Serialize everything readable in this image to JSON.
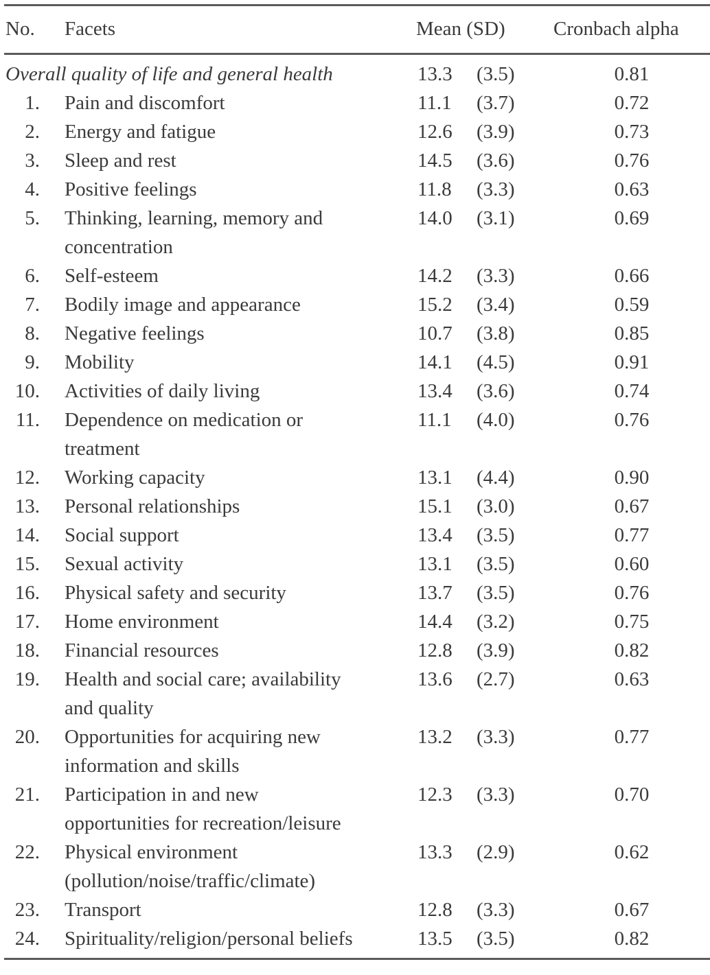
{
  "table": {
    "headers": {
      "no": "No.",
      "facets": "Facets",
      "mean_sd": "Mean (SD)",
      "alpha": "Cronbach alpha"
    },
    "overall": {
      "label": "Overall quality of life and general health",
      "mean": "13.3",
      "sd": "(3.5)",
      "alpha": "0.81"
    },
    "rows": [
      {
        "no": "1.",
        "facet": "Pain and discomfort",
        "facet2": "",
        "mean": "11.1",
        "sd": "(3.7)",
        "alpha": "0.72"
      },
      {
        "no": "2.",
        "facet": "Energy and fatigue",
        "facet2": "",
        "mean": "12.6",
        "sd": "(3.9)",
        "alpha": "0.73"
      },
      {
        "no": "3.",
        "facet": "Sleep and rest",
        "facet2": "",
        "mean": "14.5",
        "sd": "(3.6)",
        "alpha": "0.76"
      },
      {
        "no": "4.",
        "facet": "Positive feelings",
        "facet2": "",
        "mean": "11.8",
        "sd": "(3.3)",
        "alpha": "0.63"
      },
      {
        "no": "5.",
        "facet": "Thinking, learning, memory and",
        "facet2": "concentration",
        "mean": "14.0",
        "sd": "(3.1)",
        "alpha": "0.69"
      },
      {
        "no": "6.",
        "facet": "Self-esteem",
        "facet2": "",
        "mean": "14.2",
        "sd": "(3.3)",
        "alpha": "0.66"
      },
      {
        "no": "7.",
        "facet": "Bodily image and appearance",
        "facet2": "",
        "mean": "15.2",
        "sd": "(3.4)",
        "alpha": "0.59"
      },
      {
        "no": "8.",
        "facet": "Negative feelings",
        "facet2": "",
        "mean": "10.7",
        "sd": "(3.8)",
        "alpha": "0.85"
      },
      {
        "no": "9.",
        "facet": "Mobility",
        "facet2": "",
        "mean": "14.1",
        "sd": "(4.5)",
        "alpha": "0.91"
      },
      {
        "no": "10.",
        "facet": "Activities of daily living",
        "facet2": "",
        "mean": "13.4",
        "sd": "(3.6)",
        "alpha": "0.74"
      },
      {
        "no": "11.",
        "facet": "Dependence on medication  or",
        "facet2": "treatment",
        "mean": "11.1",
        "sd": "(4.0)",
        "alpha": "0.76"
      },
      {
        "no": "12.",
        "facet": "Working capacity",
        "facet2": "",
        "mean": "13.1",
        "sd": "(4.4)",
        "alpha": "0.90"
      },
      {
        "no": "13.",
        "facet": "Personal relationships",
        "facet2": "",
        "mean": "15.1",
        "sd": "(3.0)",
        "alpha": "0.67"
      },
      {
        "no": "14.",
        "facet": "Social support",
        "facet2": "",
        "mean": "13.4",
        "sd": "(3.5)",
        "alpha": "0.77"
      },
      {
        "no": "15.",
        "facet": "Sexual activity",
        "facet2": "",
        "mean": "13.1",
        "sd": "(3.5)",
        "alpha": "0.60"
      },
      {
        "no": "16.",
        "facet": "Physical safety and security",
        "facet2": "",
        "mean": "13.7",
        "sd": "(3.5)",
        "alpha": "0.76"
      },
      {
        "no": "17.",
        "facet": "Home environment",
        "facet2": "",
        "mean": "14.4",
        "sd": "(3.2)",
        "alpha": "0.75"
      },
      {
        "no": "18.",
        "facet": "Financial resources",
        "facet2": "",
        "mean": "12.8",
        "sd": "(3.9)",
        "alpha": "0.82"
      },
      {
        "no": "19.",
        "facet": "Health and social care; availability",
        "facet2": "and quality",
        "mean": "13.6",
        "sd": "(2.7)",
        "alpha": "0.63"
      },
      {
        "no": "20.",
        "facet": "Opportunities for acquiring new",
        "facet2": "information and skills",
        "mean": "13.2",
        "sd": "(3.3)",
        "alpha": "0.77"
      },
      {
        "no": "21.",
        "facet": "Participation in and new",
        "facet2": "opportunities for recreation/leisure",
        "mean": "12.3",
        "sd": "(3.3)",
        "alpha": "0.70"
      },
      {
        "no": "22.",
        "facet": "Physical environment",
        "facet2": "(pollution/noise/traffic/climate)",
        "mean": "13.3",
        "sd": "(2.9)",
        "alpha": "0.62"
      },
      {
        "no": "23.",
        "facet": "Transport",
        "facet2": "",
        "mean": "12.8",
        "sd": "(3.3)",
        "alpha": "0.67"
      },
      {
        "no": "24.",
        "facet": "Spirituality/religion/personal beliefs",
        "facet2": "",
        "mean": "13.5",
        "sd": "(3.5)",
        "alpha": "0.82"
      }
    ]
  }
}
